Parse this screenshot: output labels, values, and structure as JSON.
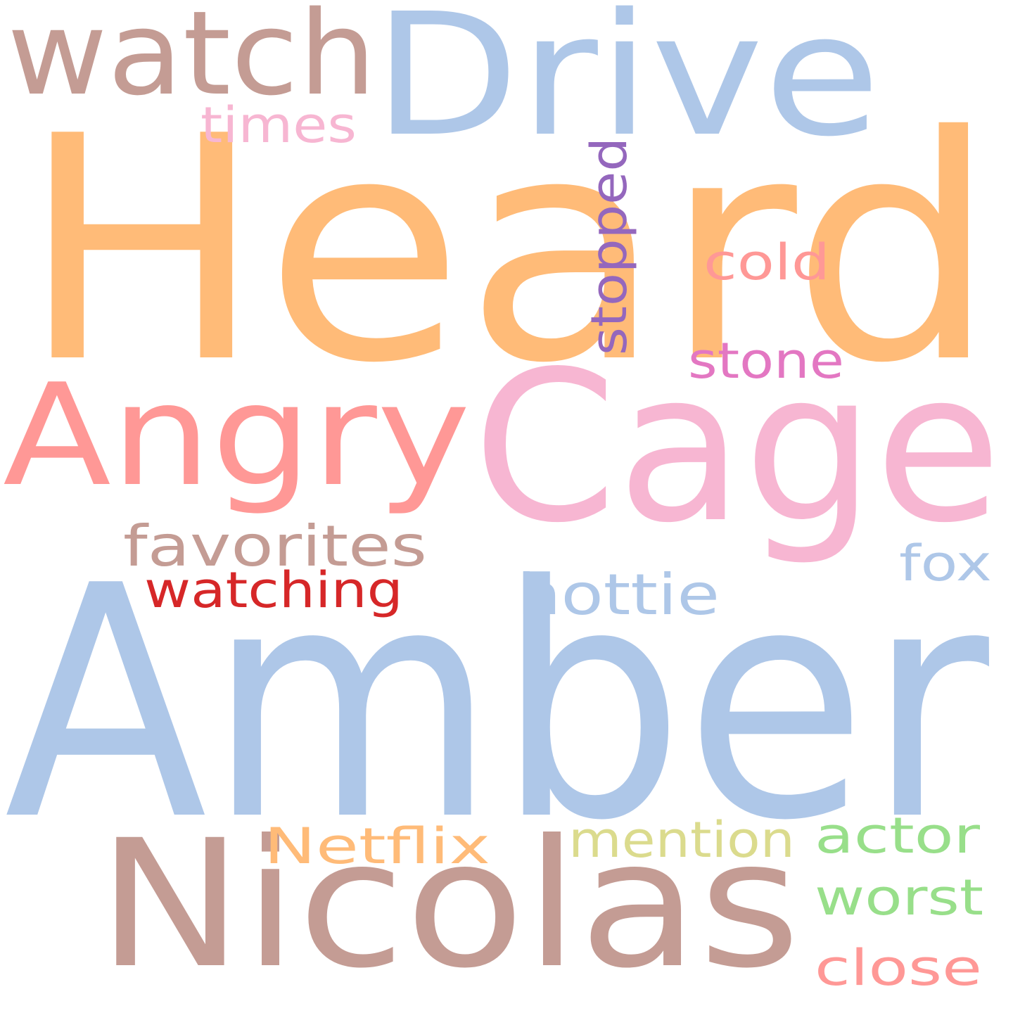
{
  "words": [
    {
      "text": "Heard",
      "color": "#ffbb78"
    },
    {
      "text": "Amber",
      "color": "#aec7e8"
    },
    {
      "text": "Cage",
      "color": "#f7b6d2"
    },
    {
      "text": "Drive",
      "color": "#aec7e8"
    },
    {
      "text": "Angry",
      "color": "#ff9896"
    },
    {
      "text": "Nicolas",
      "color": "#c49c94"
    },
    {
      "text": "watch",
      "color": "#c49c94"
    },
    {
      "text": "times",
      "color": "#f7b6d2"
    },
    {
      "text": "stopped",
      "color": "#9467bd"
    },
    {
      "text": "cold",
      "color": "#ff9896"
    },
    {
      "text": "stone",
      "color": "#e377c2"
    },
    {
      "text": "favorites",
      "color": "#c49c94"
    },
    {
      "text": "watching",
      "color": "#d62728"
    },
    {
      "text": "hottie",
      "color": "#aec7e8"
    },
    {
      "text": "fox",
      "color": "#aec7e8"
    },
    {
      "text": "Netflix",
      "color": "#ffbb78"
    },
    {
      "text": "mention",
      "color": "#dbdb8d"
    },
    {
      "text": "actor",
      "color": "#98df8a"
    },
    {
      "text": "worst",
      "color": "#98df8a"
    },
    {
      "text": "close",
      "color": "#ff9896"
    }
  ]
}
